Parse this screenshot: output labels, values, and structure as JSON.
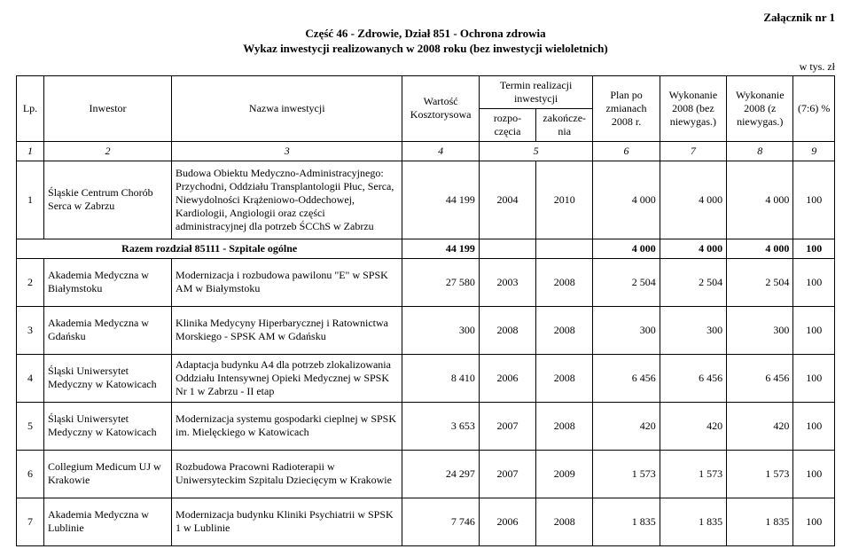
{
  "attachment_label": "Załącznik nr 1",
  "title_line1": "Część 46 - Zdrowie, Dział 851 - Ochrona zdrowia",
  "title_line2": "Wykaz inwestycji realizowanych w 2008 roku (bez inwestycji wieloletnich)",
  "unit_label": "w tys. zł",
  "headers": {
    "lp": "Lp.",
    "investor": "Inwestor",
    "investment_name": "Nazwa inwestycji",
    "estimate_value": "Wartość Kosztorysowa",
    "term": "Termin realizacji inwestycji",
    "term_start": "rozpo-częcia",
    "term_end": "zakończe-nia",
    "plan": "Plan po zmianach 2008 r.",
    "exec_no": "Wykonanie 2008 (bez niewygas.)",
    "exec_yes": "Wykonanie 2008 (z niewygas.)",
    "ratio": "(7:6) %"
  },
  "colnums": [
    "1",
    "2",
    "3",
    "4",
    "5",
    "",
    "6",
    "7",
    "8",
    "9"
  ],
  "rows": [
    {
      "lp": "1",
      "investor": "Śląskie Centrum Chorób Serca w Zabrzu",
      "name": "Budowa Obiektu Medyczno-Administracyjnego: Przychodni, Oddziału Transplantologii Płuc, Serca, Niewydolności Krążeniowo-Oddechowej, Kardiologii, Angiologii oraz części administracyjnej dla potrzeb ŚCChS w Zabrzu",
      "value": "44 199",
      "start": "2004",
      "end": "2010",
      "plan": "4 000",
      "exec_no": "4 000",
      "exec_yes": "4 000",
      "pct": "100",
      "tall": true
    }
  ],
  "razem": {
    "label": "Razem rozdział 85111 - Szpitale ogólne",
    "value": "44 199",
    "plan": "4 000",
    "exec_no": "4 000",
    "exec_yes": "4 000",
    "pct": "100"
  },
  "rows2": [
    {
      "lp": "2",
      "investor": "Akademia Medyczna w Białymstoku",
      "name": "Modernizacja i rozbudowa pawilonu \"E\" w SPSK AM w Białymstoku",
      "value": "27 580",
      "start": "2003",
      "end": "2008",
      "plan": "2 504",
      "exec_no": "2 504",
      "exec_yes": "2 504",
      "pct": "100"
    },
    {
      "lp": "3",
      "investor": "Akademia Medyczna w Gdańsku",
      "name": "Klinika Medycyny Hiperbarycznej i Ratownictwa Morskiego - SPSK AM w Gdańsku",
      "value": "300",
      "start": "2008",
      "end": "2008",
      "plan": "300",
      "exec_no": "300",
      "exec_yes": "300",
      "pct": "100"
    },
    {
      "lp": "4",
      "investor": "Śląski Uniwersytet Medyczny w Katowicach",
      "name": "Adaptacja budynku A4 dla potrzeb zlokalizowania Oddziału Intensywnej Opieki Medycznej w SPSK Nr 1 w Zabrzu - II etap",
      "value": "8 410",
      "start": "2006",
      "end": "2008",
      "plan": "6 456",
      "exec_no": "6 456",
      "exec_yes": "6 456",
      "pct": "100"
    },
    {
      "lp": "5",
      "investor": "Śląski Uniwersytet Medyczny w Katowicach",
      "name": "Modernizacja systemu gospodarki cieplnej w SPSK im. Mielęckiego w Katowicach",
      "value": "3 653",
      "start": "2007",
      "end": "2008",
      "plan": "420",
      "exec_no": "420",
      "exec_yes": "420",
      "pct": "100"
    },
    {
      "lp": "6",
      "investor": "Collegium Medicum UJ w Krakowie",
      "name": "Rozbudowa Pracowni Radioterapii w Uniwersyteckim Szpitalu Dziecięcym w Krakowie",
      "value": "24 297",
      "start": "2007",
      "end": "2009",
      "plan": "1 573",
      "exec_no": "1 573",
      "exec_yes": "1 573",
      "pct": "100"
    },
    {
      "lp": "7",
      "investor": "Akademia Medyczna w Lublinie",
      "name": "Modernizacja budynku Kliniki Psychiatrii w SPSK 1 w Lublinie",
      "value": "7 746",
      "start": "2006",
      "end": "2008",
      "plan": "1 835",
      "exec_no": "1 835",
      "exec_yes": "1 835",
      "pct": "100"
    }
  ]
}
